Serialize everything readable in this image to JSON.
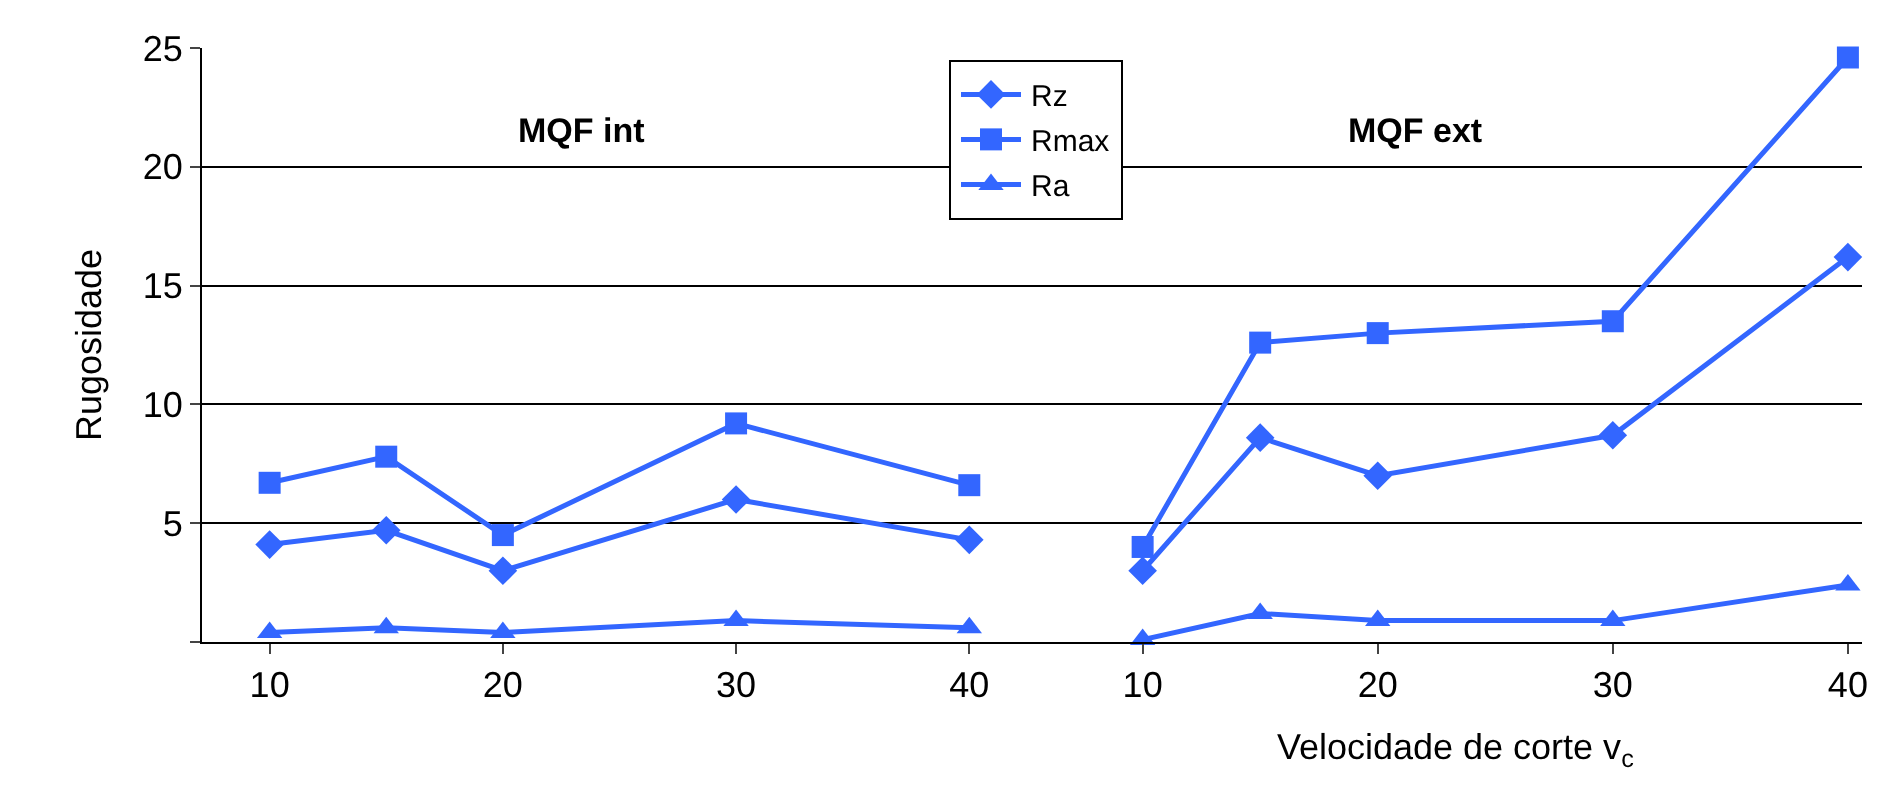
{
  "chart_data": [
    {
      "type": "line",
      "ylabel": "Rugosidade",
      "x": [
        10,
        15,
        20,
        30,
        40
      ],
      "series": [
        {
          "name": "Rz",
          "color": "#3366ff",
          "marker": "diamond",
          "values": [
            4.1,
            4.7,
            3.0,
            6.0,
            4.3
          ]
        },
        {
          "name": "Rmax",
          "color": "#3366ff",
          "marker": "square",
          "values": [
            6.7,
            7.8,
            4.5,
            9.2,
            6.6
          ]
        },
        {
          "name": "Ra",
          "color": "#3366ff",
          "marker": "triangle",
          "values": [
            0.4,
            0.6,
            0.4,
            0.9,
            0.6
          ]
        }
      ],
      "xlim": [
        7.1,
        43.4
      ],
      "xticks": [
        10,
        20,
        30,
        40
      ],
      "ylim": [
        0,
        25
      ],
      "yticks": [
        {
          "value": 0,
          "label": null
        },
        5,
        10,
        15,
        20,
        25
      ],
      "grid": "y",
      "legend": "top right",
      "line_style": "solid",
      "annotations": [
        "MQF int"
      ]
    },
    {
      "type": "line",
      "xlabel": "Velocidade de corte v$_{c}$",
      "x": [
        10,
        15,
        20,
        30,
        40
      ],
      "series": [
        {
          "color": "#3366ff",
          "marker": "diamond",
          "values": [
            3.0,
            8.6,
            7.0,
            8.7,
            16.2
          ]
        },
        {
          "color": "#3366ff",
          "marker": "square",
          "values": [
            4.0,
            12.6,
            13.0,
            13.5,
            24.6
          ]
        },
        {
          "color": "#3366ff",
          "marker": "triangle",
          "values": [
            0.1,
            1.2,
            0.9,
            0.9,
            2.4
          ]
        }
      ],
      "xlim": [
        6.0,
        40.6
      ],
      "xticks": [
        10,
        20,
        30,
        40
      ],
      "ylim": [
        0,
        25
      ],
      "yticks": [
        {
          "value": 0,
          "label": null
        },
        5,
        10,
        15,
        20,
        25
      ],
      "grid": "y",
      "tick_labels": "x",
      "line_style": "solid",
      "annotations": [
        "MQF ext"
      ]
    }
  ]
}
